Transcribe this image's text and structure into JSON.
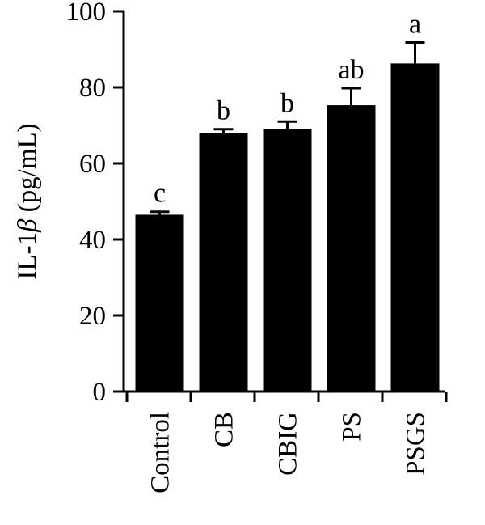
{
  "chart_data": {
    "type": "bar",
    "categories": [
      "Control",
      "CB",
      "CBIG",
      "PS",
      "PSGS"
    ],
    "values": [
      46.5,
      68.0,
      69.0,
      75.3,
      86.3
    ],
    "errors": [
      0.8,
      1.0,
      2.0,
      4.5,
      5.5
    ],
    "significance_letters": [
      "c",
      "b",
      "b",
      "ab",
      "a"
    ],
    "ylabel_main": "IL-1",
    "ylabel_symbol": "β",
    "ylabel_unit": " (pg/mL)",
    "xlabel": "",
    "ylim": [
      0,
      100
    ],
    "yticks": [
      "0",
      "20",
      "40",
      "60",
      "80",
      "100"
    ],
    "bar_color": "#000000",
    "grid": false
  }
}
